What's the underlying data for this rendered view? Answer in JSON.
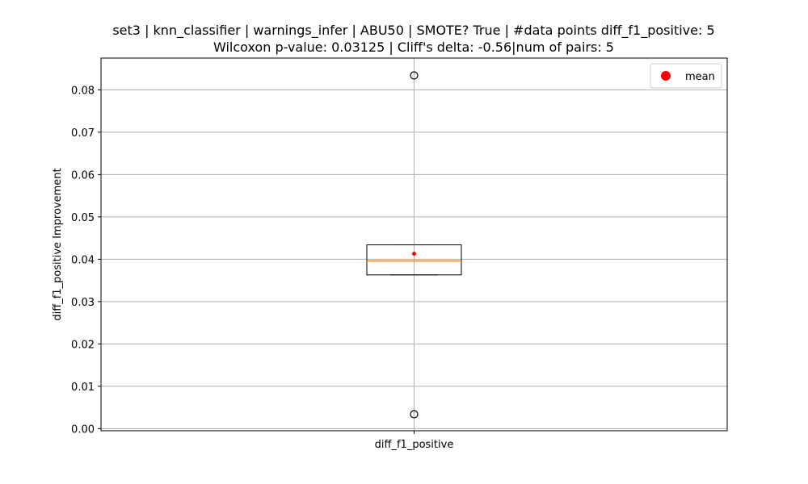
{
  "chart_data": {
    "type": "box",
    "title_line1": "set3 | knn_classifier | warnings_infer | ABU50 | SMOTE? True | #data points diff_f1_positive: 5",
    "title_line2": "Wilcoxon p-value: 0.03125 | Cliff's delta: -0.56|num of pairs: 5",
    "xlabel": "",
    "ylabel": "diff_f1_positive Improvement",
    "categories": [
      "diff_f1_positive"
    ],
    "ylim": [
      -0.0005,
      0.0875
    ],
    "yticks": [
      0.0,
      0.01,
      0.02,
      0.03,
      0.04,
      0.05,
      0.06,
      0.07,
      0.08
    ],
    "ytick_labels": [
      "0.00",
      "0.01",
      "0.02",
      "0.03",
      "0.04",
      "0.05",
      "0.06",
      "0.07",
      "0.08"
    ],
    "grid": true,
    "legend": {
      "position": "top-right",
      "entries": [
        {
          "label": "mean",
          "color": "#ff0000",
          "marker": "circle"
        }
      ]
    },
    "boxes": [
      {
        "category": "diff_f1_positive",
        "q1": 0.0363,
        "median": 0.0396,
        "q3": 0.0434,
        "whisker_low": 0.0363,
        "whisker_high": 0.0434,
        "mean": 0.0413,
        "outliers": [
          0.0834,
          0.0034
        ]
      }
    ],
    "colors": {
      "median": "#ff7f0e",
      "mean": "#ff0000",
      "box": "#000000",
      "grid": "#b0b0b0"
    }
  }
}
